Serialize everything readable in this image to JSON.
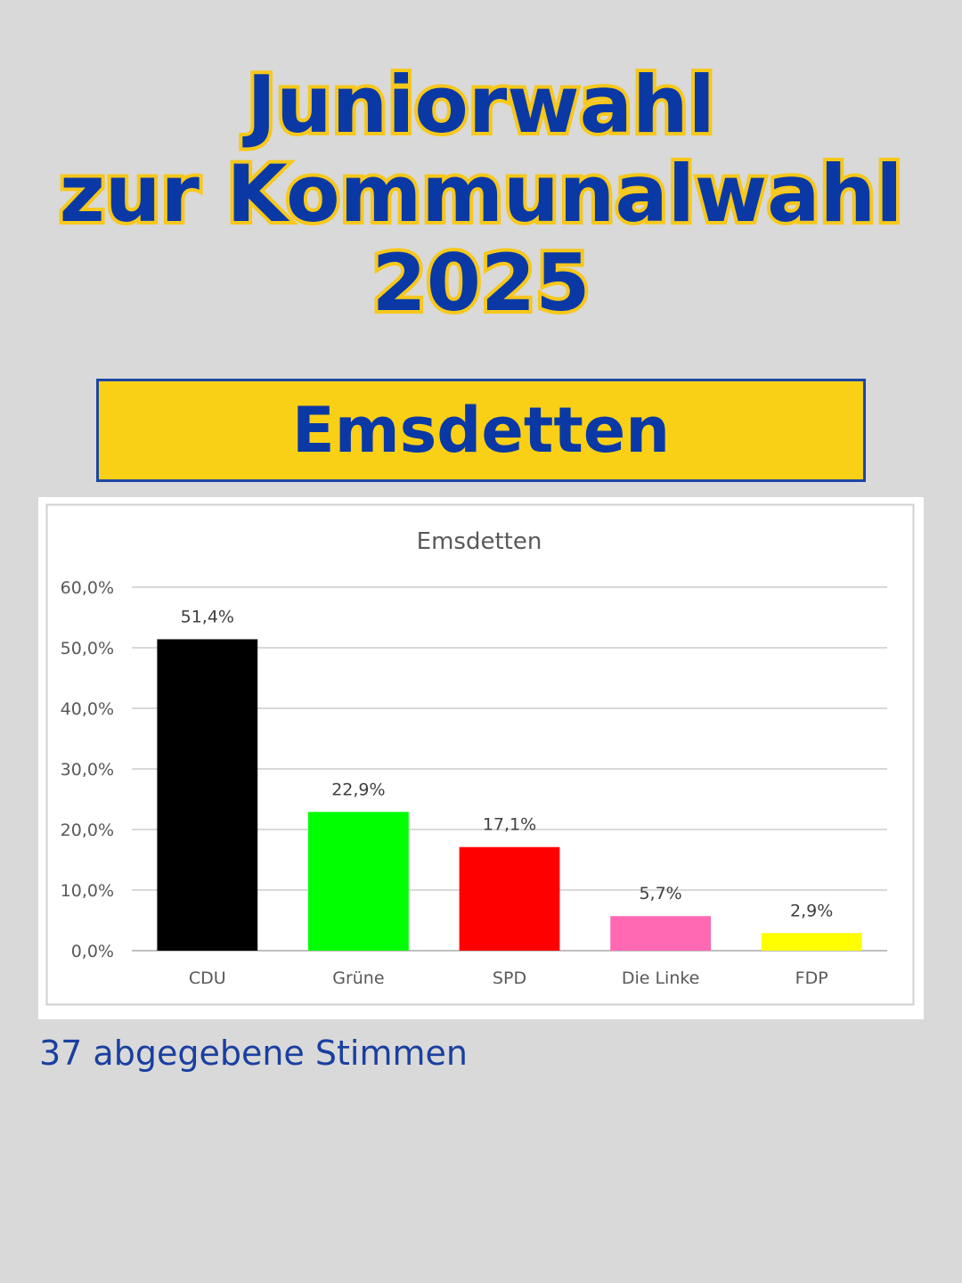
{
  "headline": {
    "line1": "Juniorwahl",
    "line2": "zur Kommunalwahl",
    "line3": "2025"
  },
  "banner": {
    "town": "Emsdetten"
  },
  "footer": {
    "votes_text": "37 abgegebene Stimmen"
  },
  "colors": {
    "headline": "#0a39a6",
    "headline_outline": "#f7c81a",
    "banner_bg": "#fad017",
    "background": "#d9d9d9"
  },
  "chart_data": {
    "type": "bar",
    "title": "Emsdetten",
    "categories": [
      "CDU",
      "Grüne",
      "SPD",
      "Die Linke",
      "FDP"
    ],
    "values": [
      51.4,
      22.9,
      17.1,
      5.7,
      2.9
    ],
    "data_labels": [
      "51,4%",
      "22,9%",
      "17,1%",
      "5,7%",
      "2,9%"
    ],
    "bar_colors": [
      "#000000",
      "#00ff00",
      "#ff0000",
      "#ff69b4",
      "#ffff00"
    ],
    "ylim": [
      0,
      60
    ],
    "yticks": [
      0,
      10,
      20,
      30,
      40,
      50,
      60
    ],
    "ytick_labels": [
      "0,0%",
      "10,0%",
      "20,0%",
      "30,0%",
      "40,0%",
      "50,0%",
      "60,0%"
    ],
    "grid": true,
    "legend": "none"
  }
}
